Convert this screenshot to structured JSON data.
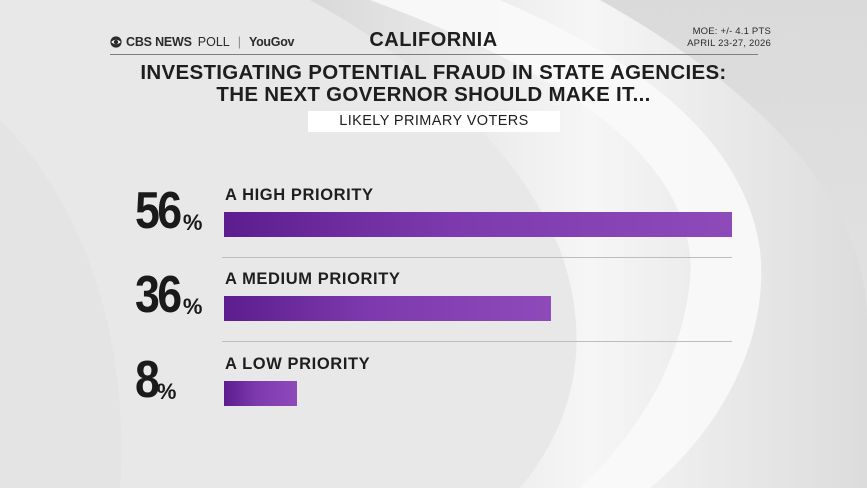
{
  "header": {
    "brand": "CBS NEWS",
    "brand_suffix": "POLL",
    "partner": "YouGov",
    "state": "CALIFORNIA",
    "moe": "MOE: +/- 4.1 PTS",
    "dates": "APRIL 23-27, 2026"
  },
  "chart_data": {
    "type": "bar",
    "orientation": "horizontal",
    "title": "INVESTIGATING POTENTIAL FRAUD IN STATE AGENCIES: THE NEXT GOVERNOR SHOULD MAKE IT...",
    "title_lines": [
      "INVESTIGATING POTENTIAL FRAUD IN STATE AGENCIES:",
      "THE NEXT GOVERNOR SHOULD MAKE IT..."
    ],
    "subtitle": "LIKELY PRIMARY VOTERS",
    "categories": [
      "A HIGH PRIORITY",
      "A MEDIUM PRIORITY",
      "A LOW PRIORITY"
    ],
    "values": [
      56,
      36,
      8
    ],
    "value_suffix": "%",
    "xlim": [
      0,
      56
    ],
    "xlabel": "",
    "ylabel": "",
    "bar_color": "#7b3bb0"
  }
}
